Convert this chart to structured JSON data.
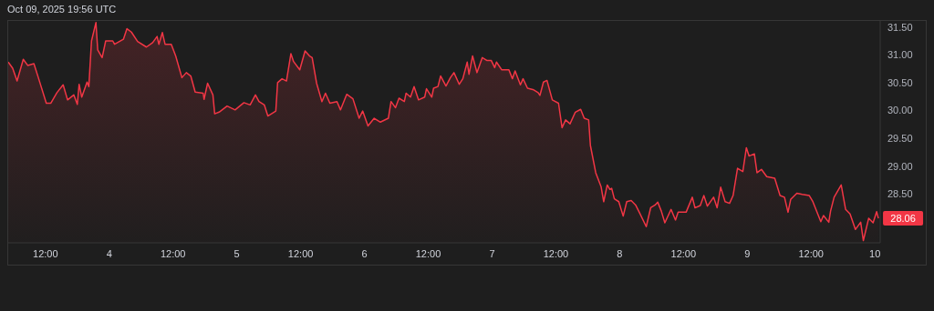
{
  "chart_data": {
    "type": "area",
    "annotations": [
      "Oct 09, 2025 19:56 UTC",
      {
        "text": "28.06",
        "x": "2025-10-10T00:40",
        "y": 28.06
      }
    ],
    "x": [
      "2025-10-03T05:00",
      "2025-10-03T05:50",
      "2025-10-03T06:40",
      "2025-10-03T07:50",
      "2025-10-03T08:40",
      "2025-10-03T09:50",
      "2025-10-03T10:40",
      "2025-10-03T12:10",
      "2025-10-03T13:00",
      "2025-10-03T14:10",
      "2025-10-03T15:20",
      "2025-10-03T16:10",
      "2025-10-03T17:20",
      "2025-10-03T18:00",
      "2025-10-03T18:20",
      "2025-10-03T18:50",
      "2025-10-03T19:50",
      "2025-10-03T20:10",
      "2025-10-03T20:40",
      "2025-10-03T21:30",
      "2025-10-03T21:50",
      "2025-10-03T22:40",
      "2025-10-03T23:20",
      "2025-10-04T00:40",
      "2025-10-04T01:00",
      "2025-10-04T02:40",
      "2025-10-04T03:20",
      "2025-10-04T04:10",
      "2025-10-04T05:20",
      "2025-10-04T07:00",
      "2025-10-04T08:10",
      "2025-10-04T09:00",
      "2025-10-04T09:20",
      "2025-10-04T10:00",
      "2025-10-04T10:30",
      "2025-10-04T11:40",
      "2025-10-04T12:30",
      "2025-10-04T13:40",
      "2025-10-04T14:30",
      "2025-10-04T15:20",
      "2025-10-04T16:10",
      "2025-10-04T17:40",
      "2025-10-04T17:50",
      "2025-10-04T18:30",
      "2025-10-04T19:30",
      "2025-10-04T19:50",
      "2025-10-04T20:40",
      "2025-10-04T22:10",
      "2025-10-04T23:40",
      "2025-10-05T01:20",
      "2025-10-05T02:30",
      "2025-10-05T03:30",
      "2025-10-05T04:10",
      "2025-10-05T05:10",
      "2025-10-05T05:50",
      "2025-10-05T07:20",
      "2025-10-05T07:40",
      "2025-10-05T08:30",
      "2025-10-05T09:20",
      "2025-10-05T10:10",
      "2025-10-05T10:40",
      "2025-10-05T11:50",
      "2025-10-05T12:50",
      "2025-10-05T13:40",
      "2025-10-05T14:10",
      "2025-10-05T15:00",
      "2025-10-05T16:00",
      "2025-10-05T16:40",
      "2025-10-05T17:30",
      "2025-10-05T18:50",
      "2025-10-05T19:30",
      "2025-10-05T20:40",
      "2025-10-05T21:50",
      "2025-10-05T23:00",
      "2025-10-05T23:40",
      "2025-10-06T00:40",
      "2025-10-06T01:50",
      "2025-10-06T03:00",
      "2025-10-06T04:30",
      "2025-10-06T05:00",
      "2025-10-06T05:50",
      "2025-10-06T06:30",
      "2025-10-06T07:30",
      "2025-10-06T07:50",
      "2025-10-06T08:40",
      "2025-10-06T09:20",
      "2025-10-06T10:10",
      "2025-10-06T11:20",
      "2025-10-06T11:40",
      "2025-10-06T12:40",
      "2025-10-06T13:00",
      "2025-10-06T13:50",
      "2025-10-06T14:20",
      "2025-10-06T15:20",
      "2025-10-06T16:10",
      "2025-10-06T16:50",
      "2025-10-06T17:50",
      "2025-10-06T18:30",
      "2025-10-06T19:20",
      "2025-10-06T19:40",
      "2025-10-06T20:20",
      "2025-10-06T21:10",
      "2025-10-06T22:10",
      "2025-10-06T23:00",
      "2025-10-06T23:50",
      "2025-10-07T00:30",
      "2025-10-07T00:50",
      "2025-10-07T01:50",
      "2025-10-07T03:10",
      "2025-10-07T03:50",
      "2025-10-07T04:20",
      "2025-10-07T05:20",
      "2025-10-07T05:50",
      "2025-10-07T06:40",
      "2025-10-07T07:50",
      "2025-10-07T08:40",
      "2025-10-07T09:00",
      "2025-10-07T09:40",
      "2025-10-07T10:20",
      "2025-10-07T11:20",
      "2025-10-07T12:30",
      "2025-10-07T13:10",
      "2025-10-07T13:50",
      "2025-10-07T14:40",
      "2025-10-07T15:40",
      "2025-10-07T16:40",
      "2025-10-07T17:20",
      "2025-10-07T18:10",
      "2025-10-07T18:30",
      "2025-10-07T19:30",
      "2025-10-07T20:30",
      "2025-10-07T21:00",
      "2025-10-07T21:40",
      "2025-10-07T22:10",
      "2025-10-07T22:30",
      "2025-10-07T23:00",
      "2025-10-07T23:50",
      "2025-10-08T00:40",
      "2025-10-08T01:20",
      "2025-10-08T02:10",
      "2025-10-08T03:00",
      "2025-10-08T03:50",
      "2025-10-08T05:00",
      "2025-10-08T05:50",
      "2025-10-08T06:40",
      "2025-10-08T07:10",
      "2025-10-08T07:50",
      "2025-10-08T08:30",
      "2025-10-08T09:40",
      "2025-10-08T10:30",
      "2025-10-08T11:00",
      "2025-10-08T12:30",
      "2025-10-08T13:40",
      "2025-10-08T14:10",
      "2025-10-08T15:10",
      "2025-10-08T15:50",
      "2025-10-08T16:30",
      "2025-10-08T17:40",
      "2025-10-08T18:20",
      "2025-10-08T19:00",
      "2025-10-08T19:50",
      "2025-10-08T20:40",
      "2025-10-08T21:20",
      "2025-10-08T22:10",
      "2025-10-08T23:10",
      "2025-10-08T23:50",
      "2025-10-09T00:20",
      "2025-10-09T01:20",
      "2025-10-09T01:50",
      "2025-10-09T02:40",
      "2025-10-09T03:40",
      "2025-10-09T05:10",
      "2025-10-09T06:10",
      "2025-10-09T07:00",
      "2025-10-09T07:40",
      "2025-10-09T08:10",
      "2025-10-09T09:20",
      "2025-10-09T10:20",
      "2025-10-09T11:40",
      "2025-10-09T12:20",
      "2025-10-09T13:50",
      "2025-10-09T14:20",
      "2025-10-09T15:20",
      "2025-10-09T15:40",
      "2025-10-09T16:20",
      "2025-10-09T17:40",
      "2025-10-09T18:30",
      "2025-10-09T19:20",
      "2025-10-09T20:20",
      "2025-10-09T21:20",
      "2025-10-09T21:50",
      "2025-10-09T22:50",
      "2025-10-09T23:40",
      "2025-10-10T00:20",
      "2025-10-10T00:40"
    ],
    "values": [
      30.87,
      30.76,
      30.53,
      30.92,
      30.81,
      30.84,
      30.59,
      30.13,
      30.13,
      30.32,
      30.46,
      30.19,
      30.28,
      30.11,
      30.47,
      30.24,
      30.51,
      30.43,
      31.25,
      31.58,
      31.09,
      30.95,
      31.25,
      31.25,
      31.19,
      31.28,
      31.47,
      31.41,
      31.24,
      31.14,
      31.22,
      31.33,
      31.19,
      31.4,
      31.19,
      31.19,
      30.98,
      30.59,
      30.68,
      30.62,
      30.33,
      30.31,
      30.2,
      30.49,
      30.28,
      29.94,
      29.97,
      30.08,
      30.01,
      30.14,
      30.1,
      30.28,
      30.16,
      30.1,
      29.9,
      29.99,
      30.5,
      30.57,
      30.53,
      31.02,
      30.88,
      30.73,
      31.07,
      30.98,
      30.95,
      30.49,
      30.16,
      30.31,
      30.13,
      30.16,
      30.01,
      30.29,
      30.21,
      29.86,
      29.99,
      29.72,
      29.86,
      29.79,
      29.86,
      30.16,
      30.05,
      30.22,
      30.16,
      30.31,
      30.24,
      30.43,
      30.19,
      30.24,
      30.39,
      30.24,
      30.4,
      30.43,
      30.62,
      30.44,
      30.59,
      30.68,
      30.47,
      30.57,
      30.87,
      30.65,
      30.98,
      30.68,
      30.95,
      30.9,
      30.9,
      30.77,
      30.87,
      30.73,
      30.73,
      30.57,
      30.71,
      30.46,
      30.57,
      30.4,
      30.37,
      30.32,
      30.27,
      30.51,
      30.54,
      30.19,
      30.13,
      29.69,
      29.83,
      29.76,
      29.97,
      30.02,
      29.86,
      29.83,
      29.37,
      28.88,
      28.63,
      28.36,
      28.66,
      28.58,
      28.6,
      28.41,
      28.36,
      28.1,
      28.36,
      28.38,
      28.3,
      28.14,
      27.91,
      28.25,
      28.3,
      28.35,
      28.19,
      27.98,
      28.22,
      28.03,
      28.17,
      28.17,
      28.44,
      28.25,
      28.29,
      28.47,
      28.28,
      28.44,
      28.25,
      28.62,
      28.36,
      28.33,
      28.47,
      28.96,
      28.9,
      29.33,
      29.18,
      29.22,
      28.88,
      28.94,
      28.81,
      28.78,
      28.47,
      28.44,
      28.17,
      28.4,
      28.51,
      28.49,
      28.47,
      28.36,
      28.0,
      28.11,
      27.99,
      28.19,
      28.44,
      28.66,
      28.22,
      28.14,
      27.86,
      27.99,
      27.66,
      28.06,
      27.98,
      28.18,
      28.06
    ],
    "color": "#f23645",
    "xlim": [
      "2025-10-03T05:00",
      "2025-10-10T01:00"
    ],
    "xticks": [
      {
        "value": "2025-10-03T12:00",
        "label": "12:00"
      },
      {
        "value": "2025-10-04T00:00",
        "label": "4"
      },
      {
        "value": "2025-10-04T12:00",
        "label": "12:00"
      },
      {
        "value": "2025-10-05T00:00",
        "label": "5"
      },
      {
        "value": "2025-10-05T12:00",
        "label": "12:00"
      },
      {
        "value": "2025-10-06T00:00",
        "label": "6"
      },
      {
        "value": "2025-10-06T12:00",
        "label": "12:00"
      },
      {
        "value": "2025-10-07T00:00",
        "label": "7"
      },
      {
        "value": "2025-10-07T12:00",
        "label": "12:00"
      },
      {
        "value": "2025-10-08T00:00",
        "label": "8"
      },
      {
        "value": "2025-10-08T12:00",
        "label": "12:00"
      },
      {
        "value": "2025-10-09T00:00",
        "label": "9"
      },
      {
        "value": "2025-10-09T12:00",
        "label": "12:00"
      },
      {
        "value": "2025-10-10T00:00",
        "label": "10"
      }
    ],
    "ylim": [
      27.62,
      31.61
    ],
    "yticks": [
      {
        "value": 28.5,
        "label": "28.50"
      },
      {
        "value": 29,
        "label": "29.00"
      },
      {
        "value": 29.5,
        "label": "29.50"
      },
      {
        "value": 30,
        "label": "30.00"
      },
      {
        "value": 30.5,
        "label": "30.50"
      },
      {
        "value": 31,
        "label": "31.00"
      },
      {
        "value": 31.5,
        "label": "31.50"
      }
    ]
  }
}
